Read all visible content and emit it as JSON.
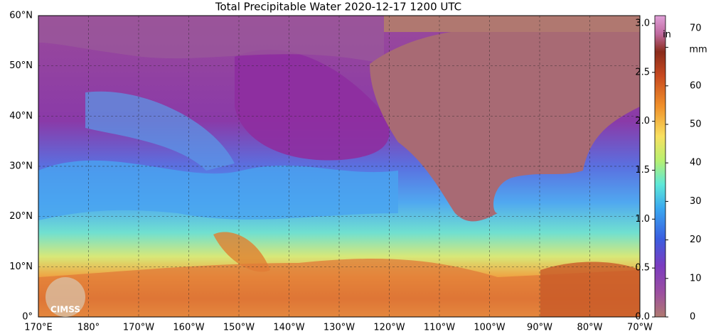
{
  "title": "Total Precipitable Water  2020-12-17 1200 UTC",
  "lat_labels": [
    "60°N",
    "50°N",
    "40°N",
    "30°N",
    "20°N",
    "10°N",
    "0°"
  ],
  "lon_labels": [
    "170°E",
    "180°",
    "170°W",
    "160°W",
    "150°W",
    "140°W",
    "130°W",
    "120°W",
    "110°W",
    "100°W",
    "90°W",
    "80°W",
    "70°W"
  ],
  "colorbar": {
    "in_unit": "in",
    "mm_unit": "mm",
    "in_ticks": [
      {
        "value": 0,
        "label": "0.0"
      },
      {
        "value": 0.5,
        "label": "0.5"
      },
      {
        "value": 1,
        "label": "1.0"
      },
      {
        "value": 1.5,
        "label": "1.5"
      },
      {
        "value": 2,
        "label": "2.0"
      },
      {
        "value": 2.5,
        "label": "2.5"
      },
      {
        "value": 3,
        "label": "3.0"
      }
    ],
    "mm_ticks": [
      0,
      10,
      20,
      30,
      40,
      50,
      60,
      70
    ]
  },
  "logo": "CIMSS"
}
